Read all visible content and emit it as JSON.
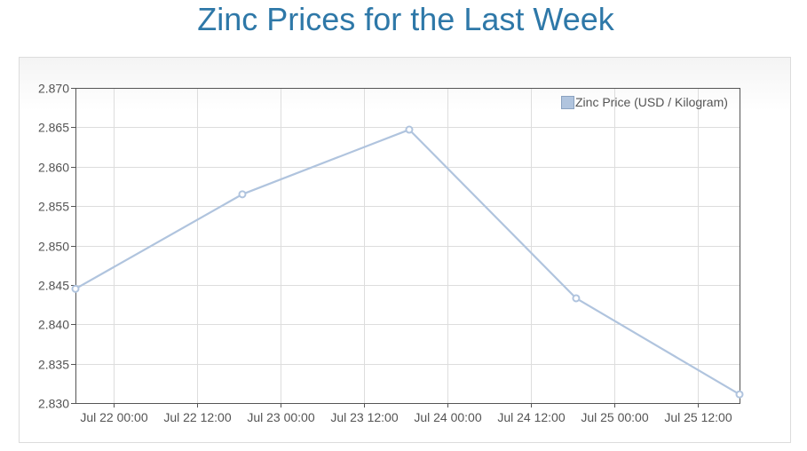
{
  "page": {
    "title": "Zinc Prices for the Last Week"
  },
  "chart_data": {
    "type": "line",
    "title": "Zinc Prices for the Last Week",
    "xlabel": "",
    "ylabel": "",
    "x_tick_labels": [
      "Jul 22 00:00",
      "Jul 22 12:00",
      "Jul 23 00:00",
      "Jul 23 12:00",
      "Jul 24 00:00",
      "Jul 24 12:00",
      "Jul 25 00:00",
      "Jul 25 12:00"
    ],
    "y_tick_labels": [
      "2.870",
      "2.865",
      "2.860",
      "2.855",
      "2.850",
      "2.845",
      "2.840",
      "2.835",
      "2.830"
    ],
    "ylim": [
      2.83,
      2.87
    ],
    "xlim": [
      "2024-07-21T18:30",
      "2024-07-25T18:00"
    ],
    "grid": true,
    "legend_position": "top-right",
    "series": [
      {
        "name": "Zinc Price (USD / Kilogram)",
        "color": "#b0c4de",
        "points": [
          {
            "x": "2024-07-21T18:30",
            "y": 2.8445
          },
          {
            "x": "2024-07-22T18:30",
            "y": 2.8565
          },
          {
            "x": "2024-07-23T18:30",
            "y": 2.8647
          },
          {
            "x": "2024-07-24T18:30",
            "y": 2.8433
          },
          {
            "x": "2024-07-25T18:00",
            "y": 2.8311
          }
        ]
      }
    ]
  },
  "colors": {
    "title": "#2e78a8",
    "grid": "#dddddd",
    "axis": "#555555",
    "series": "#b0c4de"
  }
}
